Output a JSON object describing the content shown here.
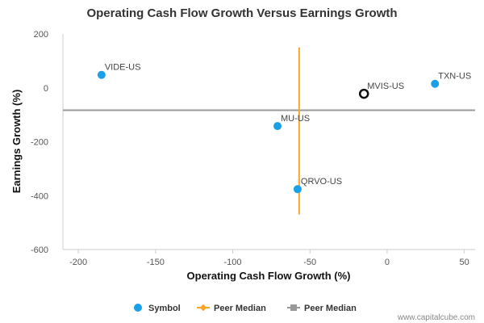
{
  "chart_data": {
    "type": "scatter",
    "title": "Operating Cash Flow Growth Versus Earnings Growth",
    "xlabel": "Operating Cash Flow Growth (%)",
    "ylabel": "Earnings Growth (%)",
    "xlim": [
      -210,
      57
    ],
    "ylim": [
      -600,
      200
    ],
    "xticks": [
      -200,
      -150,
      -100,
      -50,
      0,
      50
    ],
    "yticks": [
      200,
      0,
      -200,
      -400,
      -600
    ],
    "grid": false,
    "legend_position": "bottom",
    "points": [
      {
        "label": "VIDE-US",
        "x": -185,
        "y": 48,
        "style": "filled"
      },
      {
        "label": "MU-US",
        "x": -71,
        "y": -142,
        "style": "filled"
      },
      {
        "label": "QRVO-US",
        "x": -58,
        "y": -376,
        "style": "filled"
      },
      {
        "label": "MVIS-US",
        "x": -15,
        "y": -22,
        "style": "hollow"
      },
      {
        "label": "TXN-US",
        "x": 31,
        "y": 15,
        "style": "filled"
      }
    ],
    "peer_median_x": {
      "value": -57,
      "y_range": [
        -470,
        150
      ]
    },
    "peer_median_y": {
      "value": -83
    },
    "legend": [
      {
        "label": "Symbol",
        "kind": "dot"
      },
      {
        "label": "Peer Median",
        "kind": "vline"
      },
      {
        "label": "Peer Median",
        "kind": "hline"
      }
    ]
  },
  "colors": {
    "point": "#1aa0e6",
    "point_outline_hollow": "#111111",
    "median_vertical": "#f5a623",
    "median_horizontal": "#999999",
    "axis": "#cccccc"
  },
  "watermark": "www.capitalcube.com"
}
